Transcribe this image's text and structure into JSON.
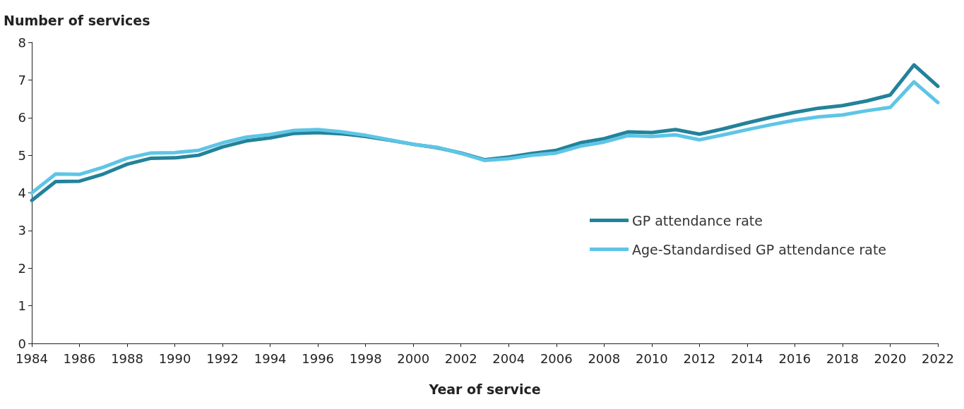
{
  "chart_data": {
    "type": "line",
    "ylabel": "Number of services",
    "xlabel": "Year of service",
    "x": [
      1984,
      1985,
      1986,
      1987,
      1988,
      1989,
      1990,
      1991,
      1992,
      1993,
      1994,
      1995,
      1996,
      1997,
      1998,
      1999,
      2000,
      2001,
      2002,
      2003,
      2004,
      2005,
      2006,
      2007,
      2008,
      2009,
      2010,
      2011,
      2012,
      2013,
      2014,
      2015,
      2016,
      2017,
      2018,
      2019,
      2020,
      2021,
      2022
    ],
    "series": [
      {
        "name": "GP attendance rate",
        "color": "#23829a",
        "values": [
          3.8,
          4.3,
          4.31,
          4.5,
          4.76,
          4.92,
          4.93,
          5.0,
          5.22,
          5.38,
          5.46,
          5.58,
          5.6,
          5.57,
          5.5,
          5.4,
          5.29,
          5.2,
          5.06,
          4.88,
          4.95,
          5.05,
          5.13,
          5.33,
          5.44,
          5.62,
          5.6,
          5.68,
          5.56,
          5.7,
          5.86,
          6.01,
          6.14,
          6.25,
          6.32,
          6.44,
          6.6,
          7.4,
          6.83
        ]
      },
      {
        "name": "Age-Standardised GP attendance rate",
        "color": "#5ec5e6",
        "values": [
          4.0,
          4.5,
          4.49,
          4.68,
          4.92,
          5.06,
          5.07,
          5.13,
          5.33,
          5.48,
          5.55,
          5.66,
          5.68,
          5.62,
          5.53,
          5.41,
          5.29,
          5.21,
          5.05,
          4.86,
          4.91,
          5.0,
          5.06,
          5.24,
          5.35,
          5.52,
          5.5,
          5.54,
          5.41,
          5.54,
          5.68,
          5.81,
          5.93,
          6.02,
          6.07,
          6.18,
          6.27,
          6.95,
          6.4
        ]
      }
    ],
    "xlim": [
      1984,
      2022
    ],
    "xticks": [
      1984,
      1986,
      1988,
      1990,
      1992,
      1994,
      1996,
      1998,
      2000,
      2002,
      2004,
      2006,
      2008,
      2010,
      2012,
      2014,
      2016,
      2018,
      2020,
      2022
    ],
    "ylim": [
      0,
      8
    ],
    "yticks": [
      0,
      1,
      2,
      3,
      4,
      5,
      6,
      7,
      8
    ],
    "grid": false,
    "legend": "right",
    "marker": "none",
    "line_style": "solid"
  }
}
